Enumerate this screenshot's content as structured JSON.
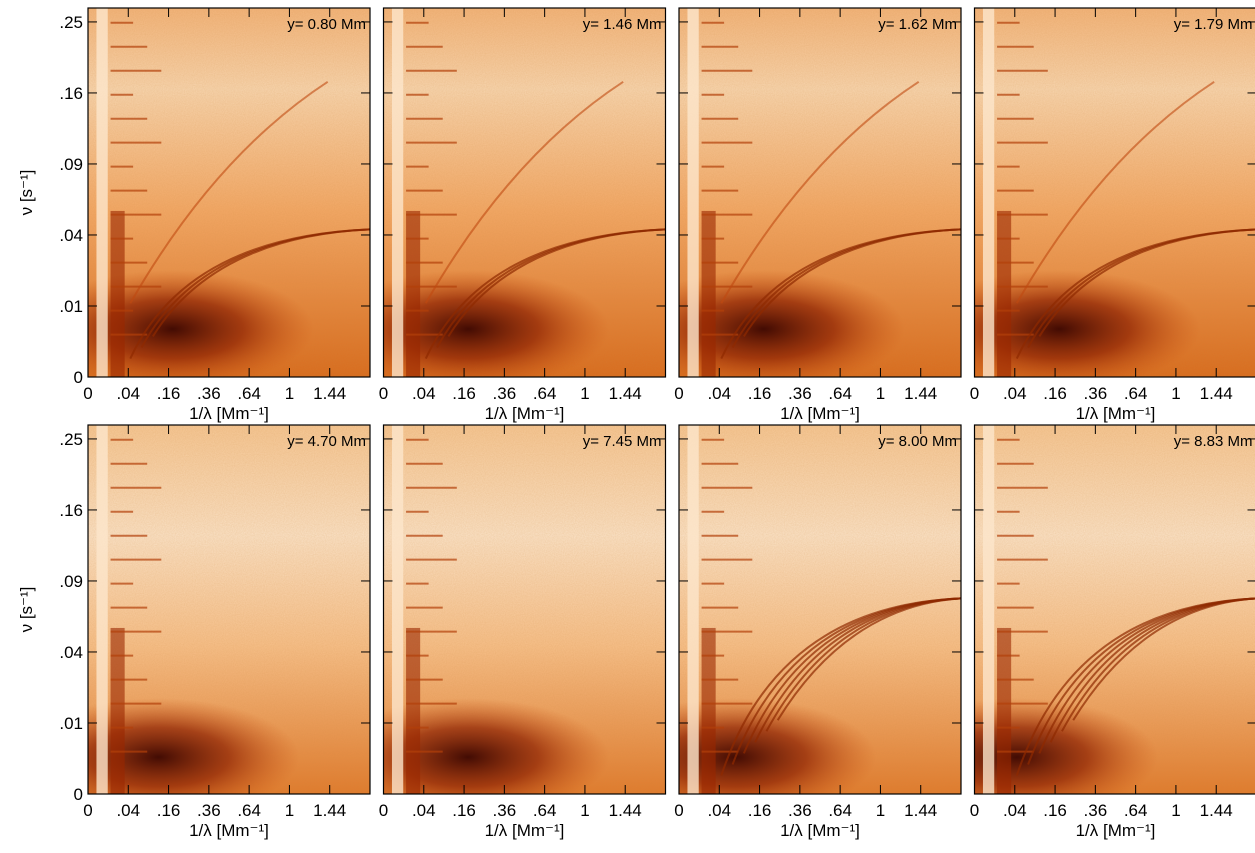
{
  "chart_data": [
    {
      "type": "heatmap",
      "annotation": "y= 0.80 Mm",
      "xlabel": "1/λ [Mm⁻¹]",
      "ylabel": "ν [s⁻¹]",
      "xscale": "sqrt",
      "yscale": "sqrt",
      "xlim": [
        0,
        1.96
      ],
      "ylim": [
        0,
        0.27
      ],
      "xticks": [
        0,
        {
          "value": 0.04,
          "label": ".04"
        },
        {
          "value": 0.16,
          "label": ".16"
        },
        {
          "value": 0.36,
          "label": ".36"
        },
        {
          "value": 0.64,
          "label": ".64"
        },
        1,
        1.44
      ],
      "yticks": [
        0,
        {
          "value": 0.01,
          "label": ".01"
        },
        {
          "value": 0.04,
          "label": ".04"
        },
        {
          "value": 0.09,
          "label": ".09"
        },
        {
          "value": 0.16,
          "label": ".16"
        },
        {
          "value": 0.25,
          "label": ".25"
        }
      ]
    },
    {
      "type": "heatmap",
      "annotation": "y= 1.46 Mm",
      "xlabel": "1/λ [Mm⁻¹]",
      "xscale": "sqrt",
      "yscale": "sqrt",
      "xlim": [
        0,
        1.96
      ],
      "ylim": [
        0,
        0.27
      ],
      "xticks": [
        0,
        {
          "value": 0.04,
          "label": ".04"
        },
        {
          "value": 0.16,
          "label": ".16"
        },
        {
          "value": 0.36,
          "label": ".36"
        },
        {
          "value": 0.64,
          "label": ".64"
        },
        1,
        1.44
      ]
    },
    {
      "type": "heatmap",
      "annotation": "y= 1.62 Mm",
      "xlabel": "1/λ [Mm⁻¹]",
      "xscale": "sqrt",
      "yscale": "sqrt",
      "xlim": [
        0,
        1.96
      ],
      "ylim": [
        0,
        0.27
      ],
      "xticks": [
        0,
        {
          "value": 0.04,
          "label": ".04"
        },
        {
          "value": 0.16,
          "label": ".16"
        },
        {
          "value": 0.36,
          "label": ".36"
        },
        {
          "value": 0.64,
          "label": ".64"
        },
        1,
        1.44
      ]
    },
    {
      "type": "heatmap",
      "annotation": "y= 1.79 Mm",
      "xlabel": "1/λ [Mm⁻¹]",
      "xscale": "sqrt",
      "yscale": "sqrt",
      "xlim": [
        0,
        1.96
      ],
      "ylim": [
        0,
        0.27
      ],
      "xticks": [
        0,
        {
          "value": 0.04,
          "label": ".04"
        },
        {
          "value": 0.16,
          "label": ".16"
        },
        {
          "value": 0.36,
          "label": ".36"
        },
        {
          "value": 0.64,
          "label": ".64"
        },
        1,
        1.44
      ]
    },
    {
      "type": "heatmap",
      "annotation": "y= 4.70 Mm",
      "xlabel": "1/λ [Mm⁻¹]",
      "ylabel": "ν [s⁻¹]",
      "xscale": "sqrt",
      "yscale": "sqrt",
      "xlim": [
        0,
        1.96
      ],
      "ylim": [
        0,
        0.27
      ],
      "xticks": [
        0,
        {
          "value": 0.04,
          "label": ".04"
        },
        {
          "value": 0.16,
          "label": ".16"
        },
        {
          "value": 0.36,
          "label": ".36"
        },
        {
          "value": 0.64,
          "label": ".64"
        },
        1,
        1.44
      ],
      "yticks": [
        0,
        {
          "value": 0.01,
          "label": ".01"
        },
        {
          "value": 0.04,
          "label": ".04"
        },
        {
          "value": 0.09,
          "label": ".09"
        },
        {
          "value": 0.16,
          "label": ".16"
        },
        {
          "value": 0.25,
          "label": ".25"
        }
      ]
    },
    {
      "type": "heatmap",
      "annotation": "y= 7.45 Mm",
      "xlabel": "1/λ [Mm⁻¹]",
      "xscale": "sqrt",
      "yscale": "sqrt",
      "xlim": [
        0,
        1.96
      ],
      "ylim": [
        0,
        0.27
      ],
      "xticks": [
        0,
        {
          "value": 0.04,
          "label": ".04"
        },
        {
          "value": 0.16,
          "label": ".16"
        },
        {
          "value": 0.36,
          "label": ".36"
        },
        {
          "value": 0.64,
          "label": ".64"
        },
        1,
        1.44
      ]
    },
    {
      "type": "heatmap",
      "annotation": "y= 8.00 Mm",
      "xlabel": "1/λ [Mm⁻¹]",
      "xscale": "sqrt",
      "yscale": "sqrt",
      "xlim": [
        0,
        1.96
      ],
      "ylim": [
        0,
        0.27
      ],
      "xticks": [
        0,
        {
          "value": 0.04,
          "label": ".04"
        },
        {
          "value": 0.16,
          "label": ".16"
        },
        {
          "value": 0.36,
          "label": ".36"
        },
        {
          "value": 0.64,
          "label": ".64"
        },
        1,
        1.44
      ]
    },
    {
      "type": "heatmap",
      "annotation": "y= 8.83 Mm",
      "xlabel": "1/λ [Mm⁻¹]",
      "xscale": "sqrt",
      "yscale": "sqrt",
      "xlim": [
        0,
        1.96
      ],
      "ylim": [
        0,
        0.27
      ],
      "xticks": [
        0,
        {
          "value": 0.04,
          "label": ".04"
        },
        {
          "value": 0.16,
          "label": ".16"
        },
        {
          "value": 0.36,
          "label": ".36"
        },
        {
          "value": 0.64,
          "label": ".64"
        },
        1,
        1.44
      ]
    }
  ]
}
